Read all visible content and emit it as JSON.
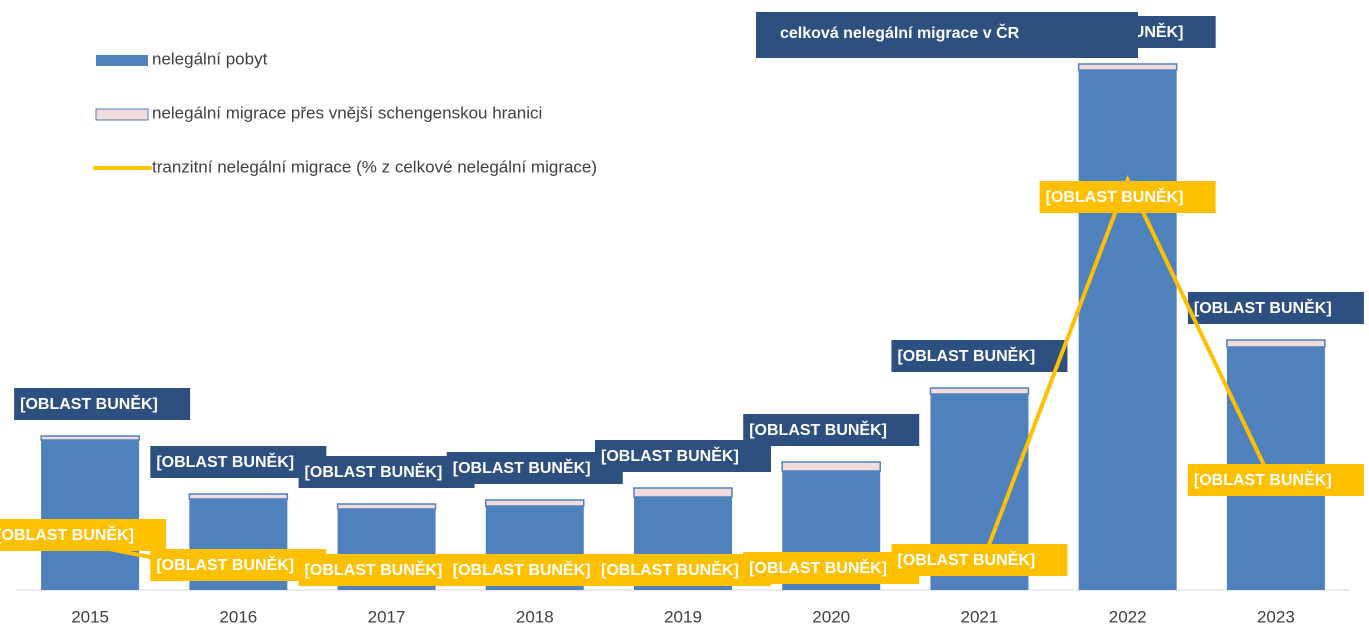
{
  "chart_data": {
    "type": "bar",
    "categories": [
      "2015",
      "2016",
      "2017",
      "2018",
      "2019",
      "2020",
      "2021",
      "2022",
      "2023"
    ],
    "series": [
      {
        "name": "nelegální pobyt",
        "color": "#4f81bd",
        "values": [
          150,
          91,
          81,
          84,
          93,
          119,
          196,
          520,
          243
        ]
      },
      {
        "name": "nelegální migrace přes vnější schengenskou hranici",
        "color": "#f2dcdb",
        "values": [
          4,
          5,
          5,
          6,
          9,
          9,
          6,
          6,
          7
        ]
      },
      {
        "name": "tranzitní nelegální migrace (% z celkové nelegální migrace)",
        "type": "line",
        "color": "#ffc000",
        "values": [
          45,
          15,
          10,
          10,
          10,
          12,
          20,
          410,
          100
        ],
        "value_labels": [
          "[OBLAST BUNĚK]",
          "[OBLAST BUNĚK]",
          "[OBLAST BUNĚK]",
          "[OBLAST BUNĚK]",
          "[OBLAST BUNĚK]",
          "[OBLAST BUNĚK]",
          "[OBLAST BUNĚK]",
          "[OBLAST BUNĚK]",
          "[OBLAST BUNĚK]"
        ]
      }
    ],
    "total_name": "celková nelegální migrace v ČR",
    "total_labels": [
      "[OBLAST BUNĚK]",
      "[OBLAST BUNĚK]",
      "[OBLAST BUNĚK]",
      "[OBLAST BUNĚK]",
      "[OBLAST BUNĚK]",
      "[OBLAST BUNĚK]",
      "[OBLAST BUNĚK]",
      "[OBLAST BUNĚK]",
      "[OBLAST BUNĚK]"
    ]
  }
}
